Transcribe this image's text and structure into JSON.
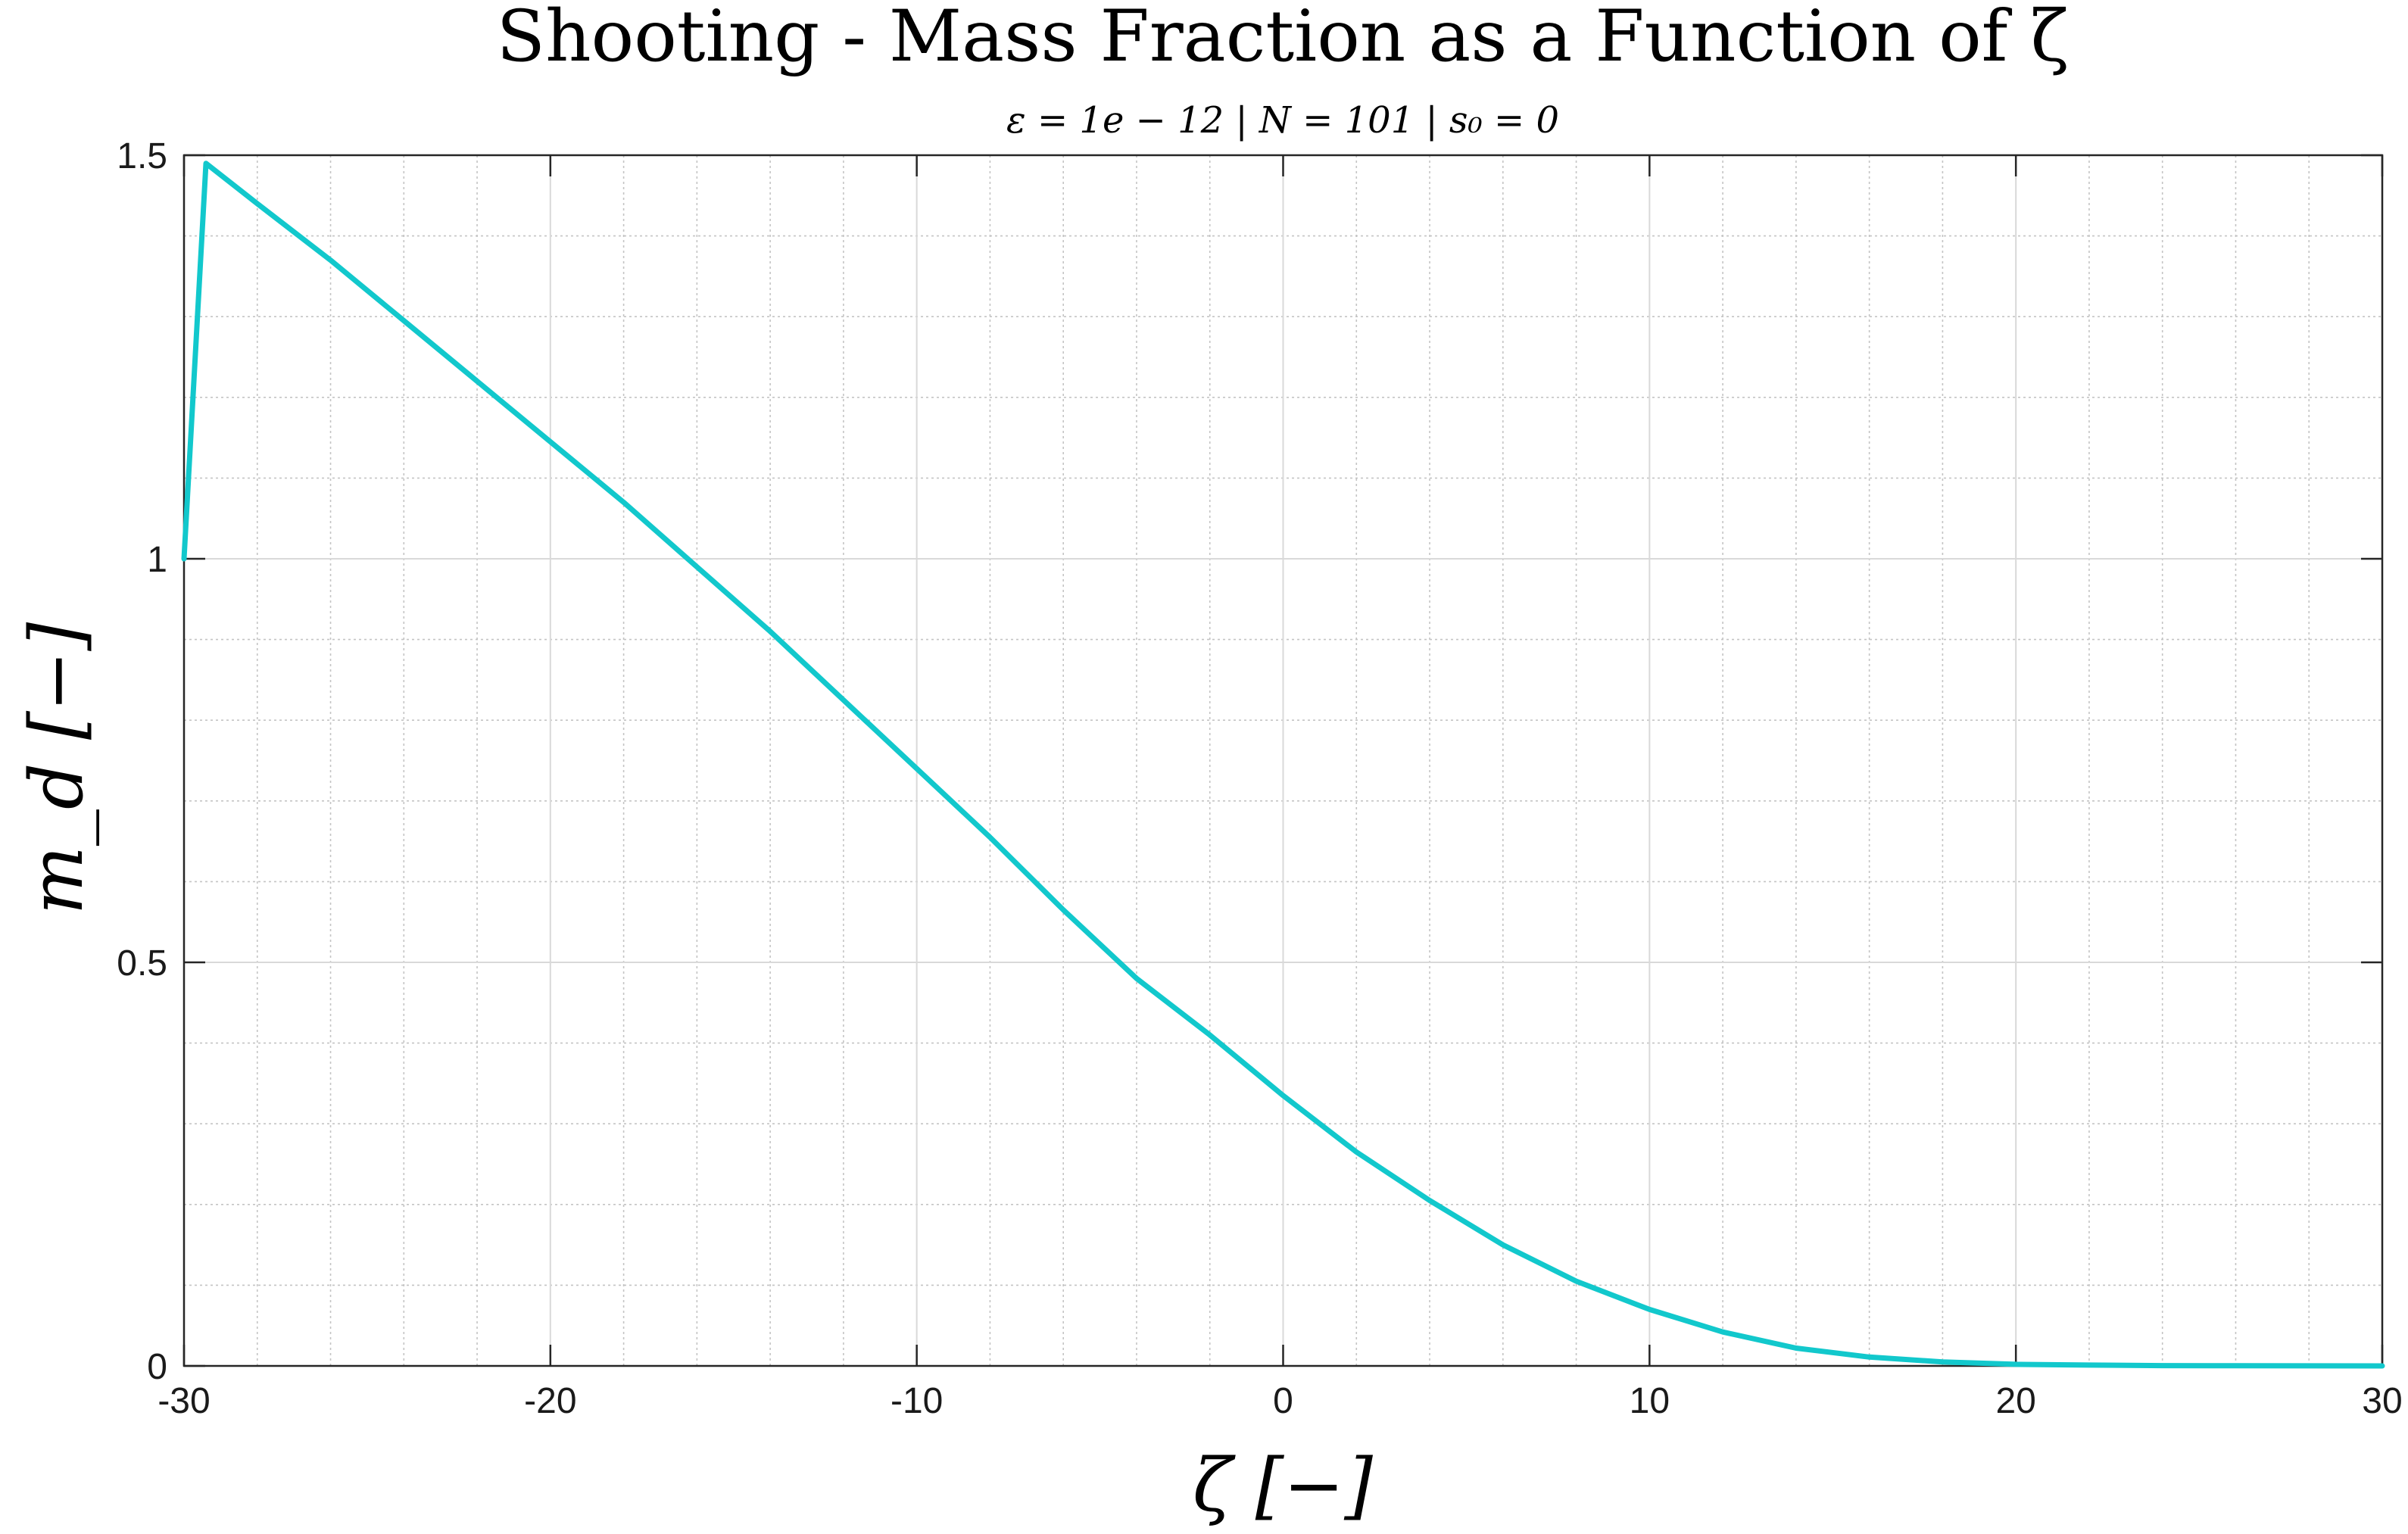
{
  "chart_data": {
    "type": "line",
    "title": "Shooting - Mass Fraction as a Function of ζ",
    "subtitle": "ε = 1e − 12 | N = 101 | s₀ = 0",
    "xlabel": "ζ [−]",
    "ylabel": "m_d [−]",
    "xlim": [
      -30,
      30
    ],
    "ylim": [
      0,
      1.5
    ],
    "xticks": [
      -30,
      -20,
      -10,
      0,
      10,
      20,
      30
    ],
    "xtick_labels": [
      "-30",
      "-20",
      "-10",
      "0",
      "10",
      "20",
      "30"
    ],
    "yticks": [
      0,
      0.5,
      1,
      1.5
    ],
    "ytick_labels": [
      "0",
      "0.5",
      "1",
      "1.5"
    ],
    "x_minor_step": 2,
    "y_minor_step": 0.1,
    "grid": true,
    "minor_grid": true,
    "line_color": "#12c8cc",
    "series": [
      {
        "x": [
          -30,
          -29.4,
          -28,
          -26,
          -24,
          -22,
          -20,
          -18,
          -16,
          -14,
          -12,
          -10,
          -8,
          -6,
          -4,
          -2,
          0,
          2,
          4,
          6,
          8,
          10,
          12,
          14,
          16,
          18,
          20,
          22,
          24,
          26,
          28,
          30
        ],
        "values": [
          1.0,
          1.49,
          1.44,
          1.37,
          1.295,
          1.22,
          1.145,
          1.07,
          0.99,
          0.91,
          0.825,
          0.74,
          0.655,
          0.565,
          0.48,
          0.41,
          0.335,
          0.265,
          0.205,
          0.15,
          0.105,
          0.07,
          0.042,
          0.022,
          0.011,
          0.005,
          0.002,
          0.001,
          0.0004,
          0.0002,
          0.0001,
          0.0
        ]
      }
    ]
  }
}
